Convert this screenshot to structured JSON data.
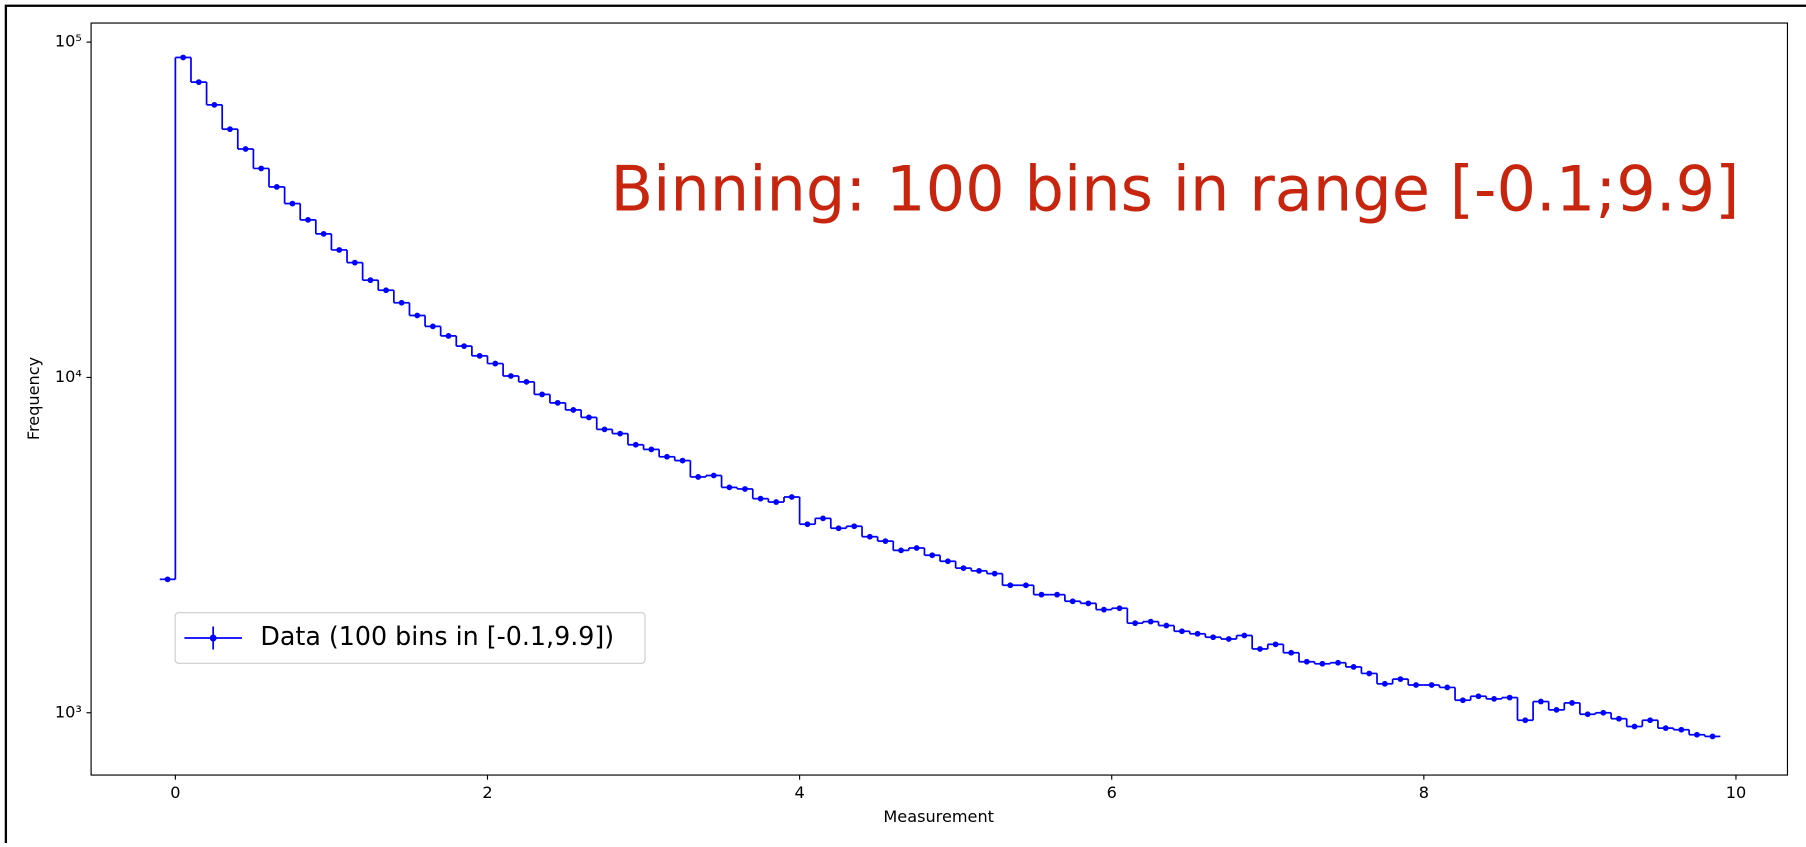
{
  "chart_data": {
    "type": "histogram",
    "annotation": "Binning: 100 bins in range [-0.1;9.9]",
    "x_label": "Measurement",
    "y_label": "Frequency",
    "bins": [
      -0.1,
      0,
      0.1,
      0.2,
      0.3,
      0.4,
      0.5,
      0.6,
      0.7,
      0.8,
      0.9,
      1.0,
      1.1,
      1.2,
      1.3,
      1.4,
      1.5,
      1.6,
      1.7,
      1.8,
      1.9,
      2.0,
      2.1,
      2.2,
      2.3,
      2.4,
      2.5,
      2.6,
      2.7,
      2.8,
      2.9,
      3.0,
      3.1,
      3.2,
      3.3,
      3.4,
      3.5,
      3.6,
      3.7,
      3.8,
      3.9,
      4.0,
      4.1,
      4.2,
      4.3,
      4.4,
      4.5,
      4.6,
      4.7,
      4.8,
      4.9,
      5.0,
      5.1,
      5.2,
      5.3,
      5.4,
      5.5,
      5.6,
      5.7,
      5.8,
      5.9,
      6.0,
      6.1,
      6.2,
      6.3,
      6.4,
      6.5,
      6.6,
      6.7,
      6.8,
      6.9,
      7.0,
      7.1,
      7.2,
      7.3,
      7.4,
      7.5,
      7.6,
      7.7,
      7.8,
      7.9,
      8.0,
      8.1,
      8.2,
      8.3,
      8.4,
      8.5,
      8.6,
      8.7,
      8.8,
      8.9,
      9.0,
      9.1,
      9.2,
      9.3,
      9.4,
      9.5,
      9.6,
      9.7,
      9.8,
      9.9
    ],
    "series": [
      {
        "name": "Data (100 bins in [-0.1,9.9])",
        "color": "#0000ff",
        "values": [
          2500,
          90000,
          76000,
          65000,
          55000,
          48000,
          42000,
          37000,
          33000,
          29500,
          26800,
          24000,
          22000,
          19500,
          18200,
          16700,
          15300,
          14200,
          13300,
          12400,
          11600,
          11000,
          10100,
          9700,
          8900,
          8400,
          8000,
          7600,
          7000,
          6800,
          6300,
          6100,
          5800,
          5650,
          5050,
          5100,
          4700,
          4650,
          4350,
          4250,
          4400,
          3650,
          3800,
          3550,
          3600,
          3350,
          3250,
          3050,
          3100,
          2950,
          2830,
          2700,
          2650,
          2600,
          2400,
          2400,
          2250,
          2250,
          2150,
          2120,
          2030,
          2050,
          1850,
          1870,
          1820,
          1750,
          1720,
          1680,
          1660,
          1700,
          1550,
          1600,
          1510,
          1420,
          1400,
          1410,
          1370,
          1310,
          1220,
          1260,
          1210,
          1210,
          1190,
          1090,
          1120,
          1100,
          1110,
          950,
          1080,
          1020,
          1070,
          990,
          1000,
          960,
          910,
          950,
          900,
          890,
          860,
          850
        ]
      }
    ],
    "xlim": [
      -0.54,
      10.33
    ],
    "xticks": [
      0,
      2,
      4,
      6,
      8,
      10
    ],
    "ylim": [
      652,
      114000
    ],
    "log_y": true,
    "yticks": [
      {
        "value": 1000,
        "label": "10³"
      },
      {
        "value": 10000,
        "label": "10⁴"
      },
      {
        "value": 100000,
        "label": "10⁵"
      }
    ],
    "legend": "lower left",
    "annotation_color": "#c8250f"
  }
}
